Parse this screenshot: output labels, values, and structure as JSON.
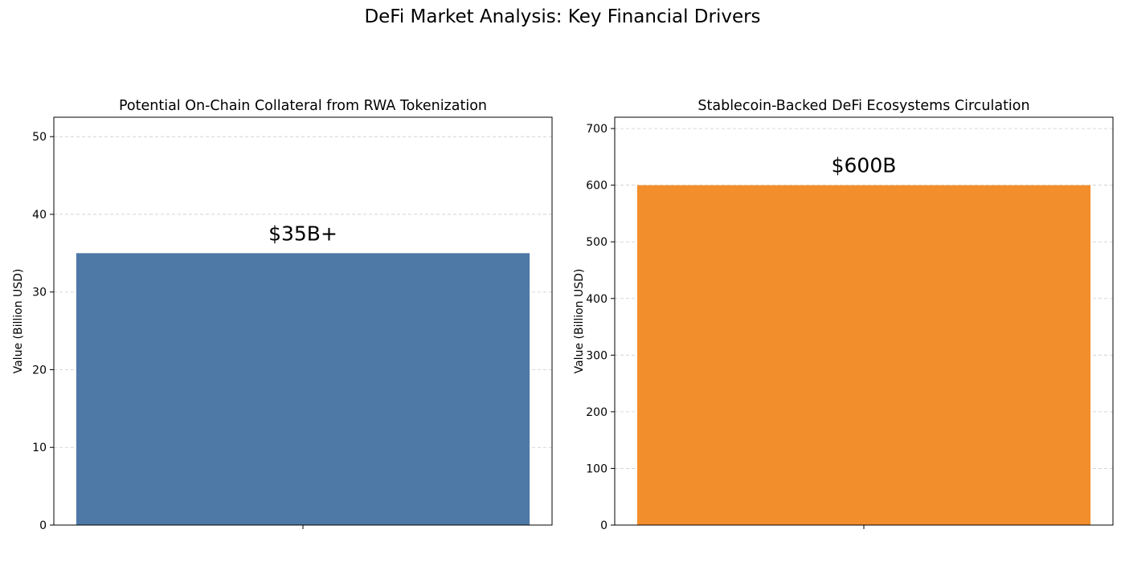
{
  "figure": {
    "title": "DeFi Market Analysis: Key Financial Drivers"
  },
  "chart_data": [
    {
      "type": "bar",
      "title": "Potential On-Chain Collateral from RWA Tokenization",
      "xlabel": "",
      "ylabel": "Value (Billion USD)",
      "categories": [
        ""
      ],
      "values": [
        35
      ],
      "data_labels": [
        "$35B+"
      ],
      "ylim": [
        0,
        52.5
      ],
      "yticks": [
        0,
        10,
        20,
        30,
        40,
        50
      ],
      "grid": "y-dashed",
      "color": "#4e79a7"
    },
    {
      "type": "bar",
      "title": "Stablecoin-Backed DeFi Ecosystems Circulation",
      "xlabel": "",
      "ylabel": "Value (Billion USD)",
      "categories": [
        ""
      ],
      "values": [
        600
      ],
      "data_labels": [
        "$600B"
      ],
      "ylim": [
        0,
        720
      ],
      "yticks": [
        0,
        100,
        200,
        300,
        400,
        500,
        600,
        700
      ],
      "grid": "y-dashed",
      "color": "#f28e2b"
    }
  ]
}
